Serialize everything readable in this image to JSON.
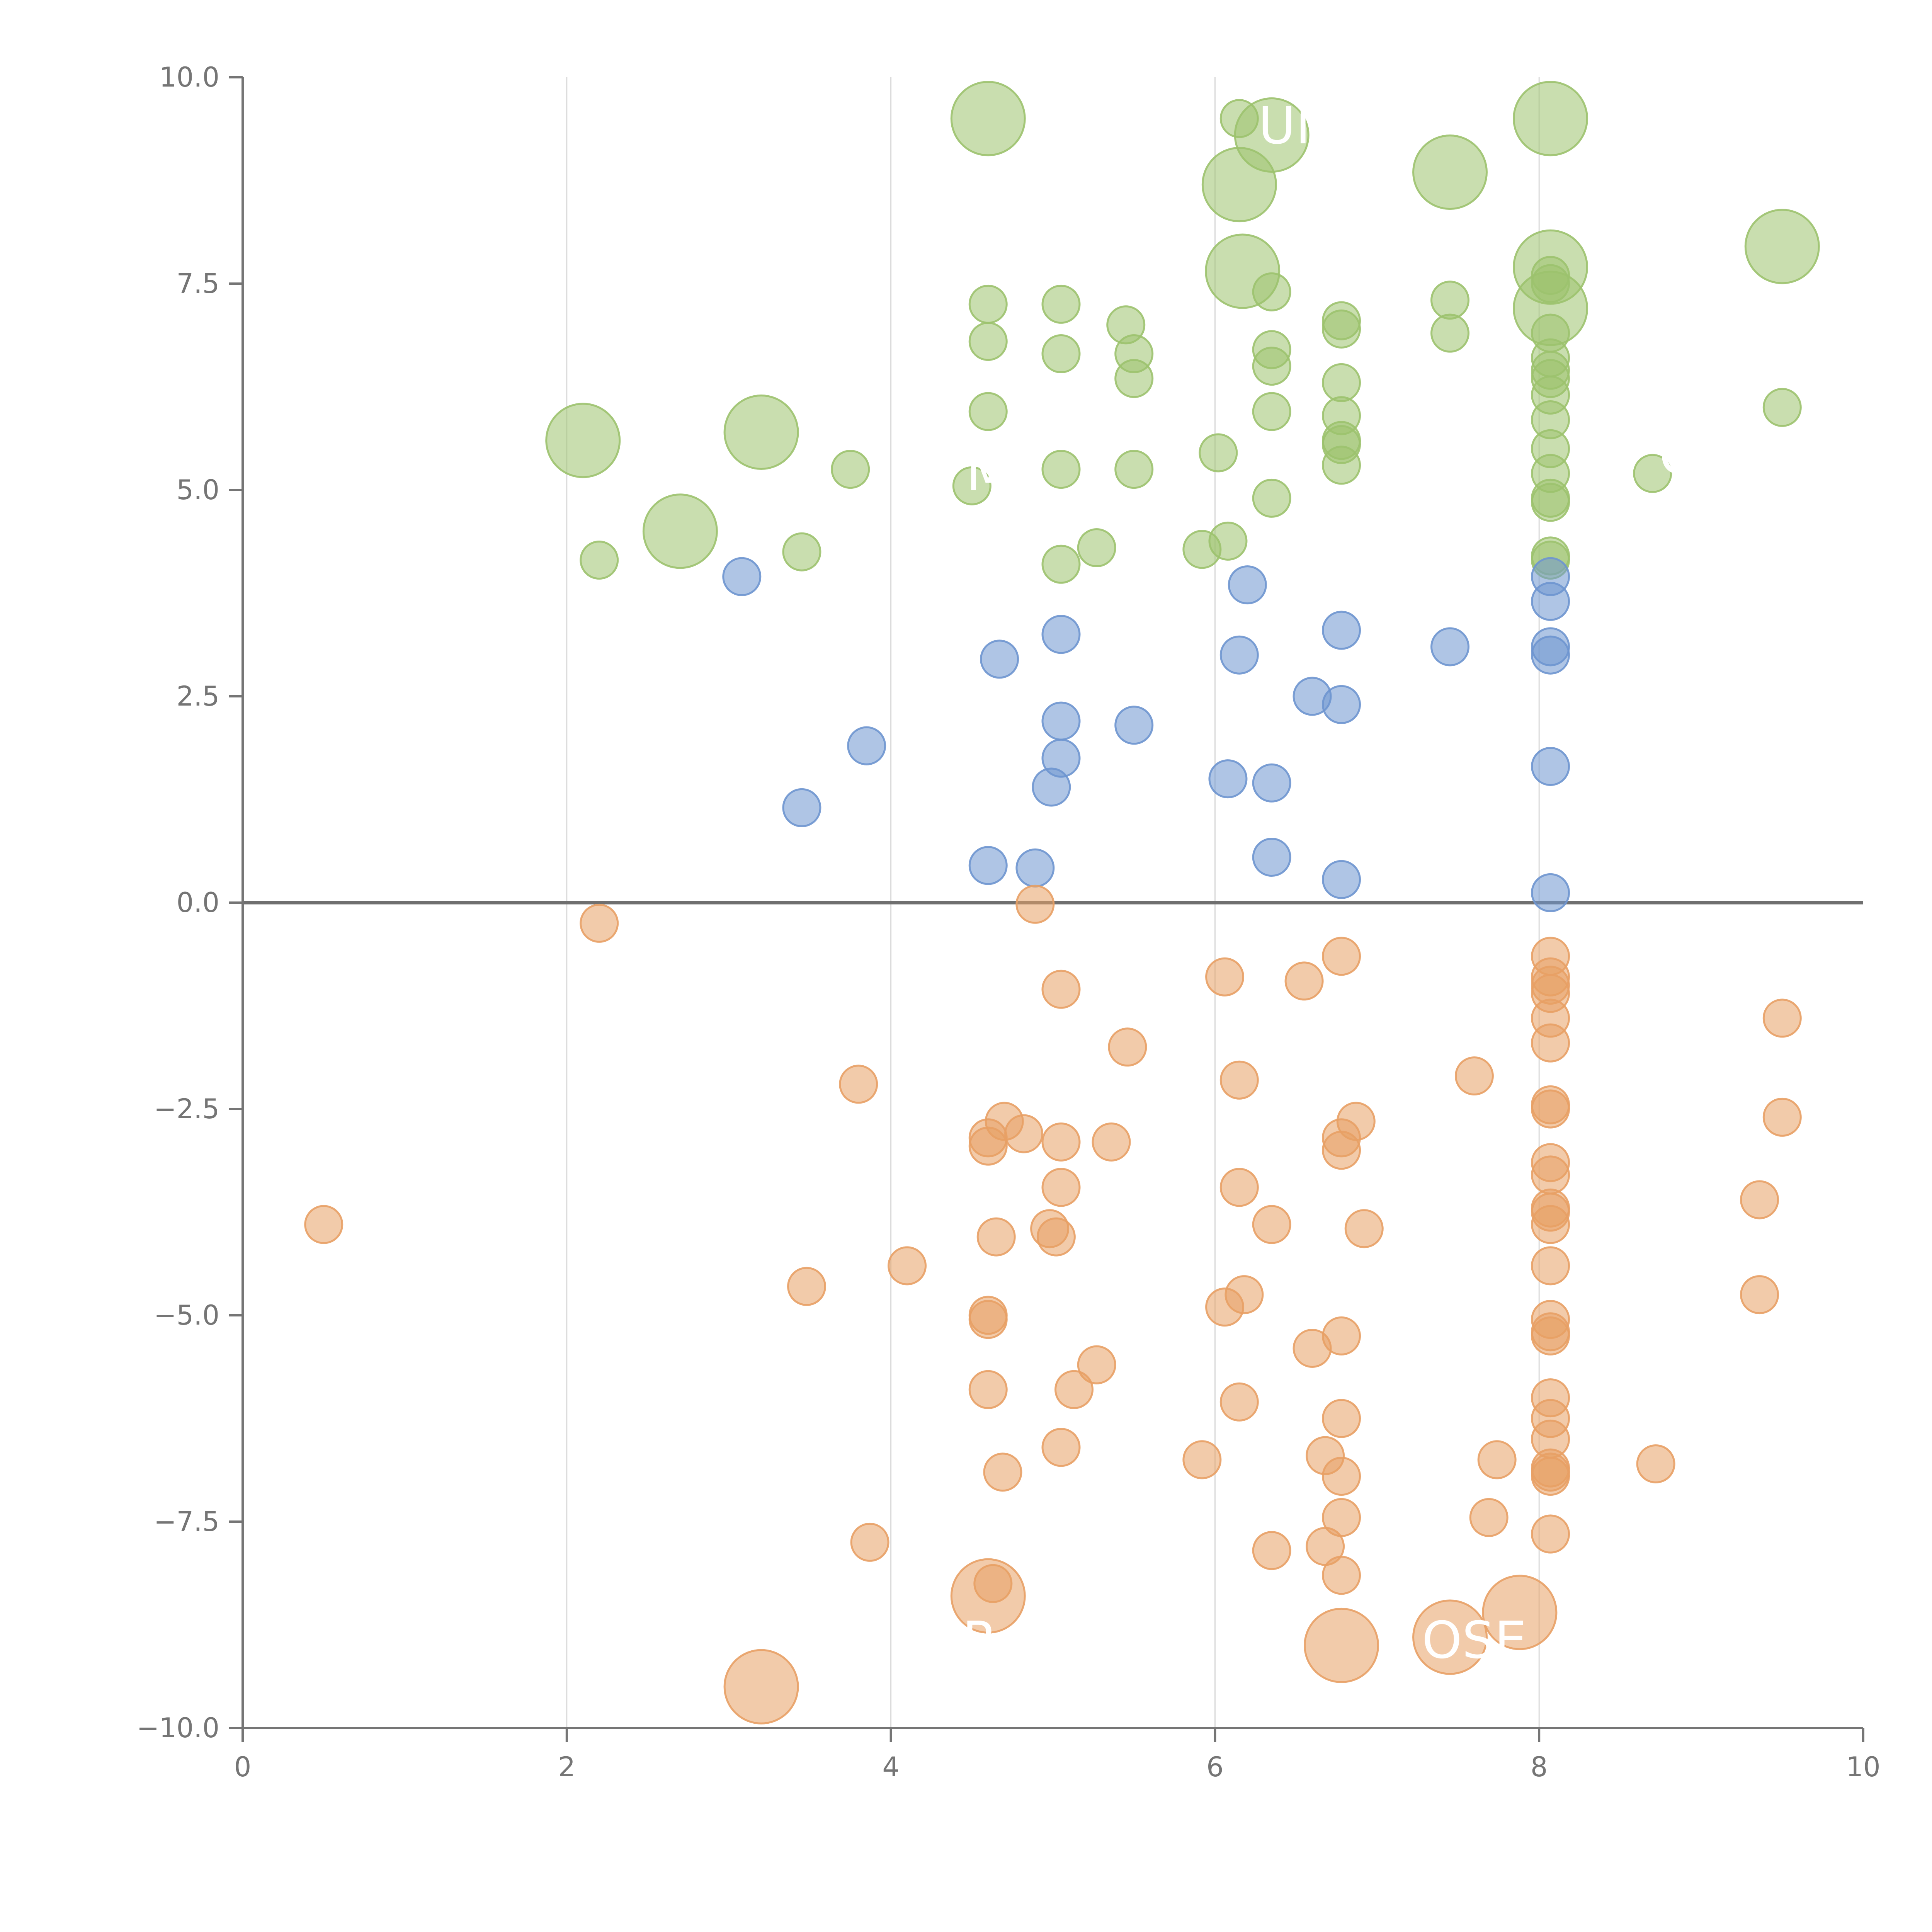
{
  "chart_data": {
    "type": "scatter",
    "title": "",
    "xlabel": "",
    "ylabel": "",
    "xlim": [
      0,
      10
    ],
    "ylim": [
      -10,
      10
    ],
    "x_ticks": [
      0,
      2,
      4,
      6,
      8,
      10
    ],
    "y_ticks": [
      -10,
      -7.5,
      -5,
      -2.5,
      0,
      2.5,
      5,
      7.5,
      10
    ],
    "x_tick_labels": [
      "0",
      "2",
      "4",
      "6",
      "8",
      "10"
    ],
    "y_tick_labels": [
      "−10.0",
      "−7.5",
      "−5.0",
      "−2.5",
      "0.0",
      "2.5",
      "5.0",
      "7.5",
      "10.0"
    ],
    "vertical_gridlines": [
      2,
      4,
      6,
      8
    ],
    "zero_line": 0,
    "colors": {
      "green": "#9cc26e",
      "blue": "#6e95cf",
      "orange": "#e8a065",
      "axis": "#757575",
      "grid": "#d9d9d9"
    },
    "series": [
      {
        "name": "green",
        "points": [
          {
            "x": 4.6,
            "y": 9.5,
            "s": "large"
          },
          {
            "x": 6.15,
            "y": 9.5,
            "s": "small"
          },
          {
            "x": 6.35,
            "y": 9.3,
            "s": "large"
          },
          {
            "x": 6.15,
            "y": 8.7,
            "s": "large"
          },
          {
            "x": 7.45,
            "y": 8.85,
            "s": "large"
          },
          {
            "x": 8.07,
            "y": 9.5,
            "s": "large"
          },
          {
            "x": 9.5,
            "y": 7.95,
            "s": "large"
          },
          {
            "x": 6.17,
            "y": 7.65,
            "s": "large"
          },
          {
            "x": 8.07,
            "y": 7.7,
            "s": "large"
          },
          {
            "x": 8.07,
            "y": 7.2,
            "s": "large"
          },
          {
            "x": 8.07,
            "y": 7.6,
            "s": "small"
          },
          {
            "x": 8.07,
            "y": 7.5,
            "s": "small"
          },
          {
            "x": 8.07,
            "y": 6.9,
            "s": "small"
          },
          {
            "x": 8.07,
            "y": 6.6,
            "s": "small"
          },
          {
            "x": 8.07,
            "y": 6.45,
            "s": "small"
          },
          {
            "x": 8.07,
            "y": 6.35,
            "s": "small"
          },
          {
            "x": 8.07,
            "y": 6.15,
            "s": "small"
          },
          {
            "x": 8.07,
            "y": 5.85,
            "s": "small"
          },
          {
            "x": 8.07,
            "y": 5.5,
            "s": "small"
          },
          {
            "x": 8.07,
            "y": 5.2,
            "s": "small"
          },
          {
            "x": 8.07,
            "y": 4.9,
            "s": "small"
          },
          {
            "x": 8.07,
            "y": 4.85,
            "s": "small"
          },
          {
            "x": 8.07,
            "y": 4.2,
            "s": "small"
          },
          {
            "x": 8.07,
            "y": 4.15,
            "s": "small"
          },
          {
            "x": 4.6,
            "y": 7.25,
            "s": "small"
          },
          {
            "x": 5.05,
            "y": 7.25,
            "s": "small"
          },
          {
            "x": 4.6,
            "y": 6.8,
            "s": "small"
          },
          {
            "x": 5.05,
            "y": 6.65,
            "s": "small"
          },
          {
            "x": 5.45,
            "y": 7.0,
            "s": "small"
          },
          {
            "x": 5.5,
            "y": 6.65,
            "s": "small"
          },
          {
            "x": 5.5,
            "y": 6.35,
            "s": "small"
          },
          {
            "x": 4.6,
            "y": 5.95,
            "s": "small"
          },
          {
            "x": 6.35,
            "y": 7.4,
            "s": "small"
          },
          {
            "x": 6.35,
            "y": 6.7,
            "s": "small"
          },
          {
            "x": 6.35,
            "y": 6.5,
            "s": "small"
          },
          {
            "x": 6.35,
            "y": 5.95,
            "s": "small"
          },
          {
            "x": 6.78,
            "y": 7.05,
            "s": "small"
          },
          {
            "x": 6.78,
            "y": 6.95,
            "s": "small"
          },
          {
            "x": 6.78,
            "y": 6.3,
            "s": "small"
          },
          {
            "x": 6.78,
            "y": 5.9,
            "s": "small"
          },
          {
            "x": 6.78,
            "y": 5.6,
            "s": "small"
          },
          {
            "x": 6.78,
            "y": 5.55,
            "s": "small"
          },
          {
            "x": 6.78,
            "y": 5.3,
            "s": "small"
          },
          {
            "x": 7.45,
            "y": 7.3,
            "s": "small"
          },
          {
            "x": 7.45,
            "y": 6.9,
            "s": "small"
          },
          {
            "x": 9.5,
            "y": 6.0,
            "s": "small"
          },
          {
            "x": 8.7,
            "y": 5.2,
            "s": "small"
          },
          {
            "x": 6.02,
            "y": 5.45,
            "s": "small"
          },
          {
            "x": 6.35,
            "y": 4.9,
            "s": "small"
          },
          {
            "x": 5.05,
            "y": 5.25,
            "s": "small"
          },
          {
            "x": 5.5,
            "y": 5.25,
            "s": "small"
          },
          {
            "x": 4.5,
            "y": 5.05,
            "s": "small"
          },
          {
            "x": 3.75,
            "y": 5.25,
            "s": "small"
          },
          {
            "x": 3.45,
            "y": 4.25,
            "s": "small"
          },
          {
            "x": 5.05,
            "y": 4.1,
            "s": "small"
          },
          {
            "x": 5.27,
            "y": 4.3,
            "s": "small"
          },
          {
            "x": 5.92,
            "y": 4.28,
            "s": "small"
          },
          {
            "x": 6.08,
            "y": 4.38,
            "s": "small"
          },
          {
            "x": 2.2,
            "y": 4.15,
            "s": "small"
          },
          {
            "x": 2.1,
            "y": 5.6,
            "s": "large"
          },
          {
            "x": 3.2,
            "y": 5.7,
            "s": "large"
          },
          {
            "x": 2.7,
            "y": 4.5,
            "s": "large"
          }
        ]
      },
      {
        "name": "blue",
        "points": [
          {
            "x": 3.08,
            "y": 3.95,
            "s": "small"
          },
          {
            "x": 6.2,
            "y": 3.85,
            "s": "small"
          },
          {
            "x": 8.07,
            "y": 3.95,
            "s": "small"
          },
          {
            "x": 8.07,
            "y": 3.65,
            "s": "small"
          },
          {
            "x": 5.05,
            "y": 3.25,
            "s": "small"
          },
          {
            "x": 4.67,
            "y": 2.95,
            "s": "small"
          },
          {
            "x": 6.15,
            "y": 3.0,
            "s": "small"
          },
          {
            "x": 6.78,
            "y": 3.3,
            "s": "small"
          },
          {
            "x": 7.45,
            "y": 3.1,
            "s": "small"
          },
          {
            "x": 8.07,
            "y": 3.1,
            "s": "small"
          },
          {
            "x": 8.07,
            "y": 3.0,
            "s": "small"
          },
          {
            "x": 6.6,
            "y": 2.5,
            "s": "small"
          },
          {
            "x": 6.78,
            "y": 2.4,
            "s": "small"
          },
          {
            "x": 5.05,
            "y": 2.2,
            "s": "small"
          },
          {
            "x": 5.5,
            "y": 2.15,
            "s": "small"
          },
          {
            "x": 3.85,
            "y": 1.9,
            "s": "small"
          },
          {
            "x": 5.05,
            "y": 1.75,
            "s": "small"
          },
          {
            "x": 8.07,
            "y": 1.65,
            "s": "small"
          },
          {
            "x": 6.08,
            "y": 1.5,
            "s": "small"
          },
          {
            "x": 6.35,
            "y": 1.45,
            "s": "small"
          },
          {
            "x": 4.99,
            "y": 1.4,
            "s": "small"
          },
          {
            "x": 3.45,
            "y": 1.15,
            "s": "small"
          },
          {
            "x": 6.35,
            "y": 0.55,
            "s": "small"
          },
          {
            "x": 4.6,
            "y": 0.45,
            "s": "small"
          },
          {
            "x": 4.89,
            "y": 0.42,
            "s": "small"
          },
          {
            "x": 6.78,
            "y": 0.28,
            "s": "small"
          },
          {
            "x": 8.07,
            "y": 0.12,
            "s": "small"
          }
        ]
      },
      {
        "name": "orange",
        "points": [
          {
            "x": 4.89,
            "y": -0.02,
            "s": "small"
          },
          {
            "x": 2.2,
            "y": -0.25,
            "s": "small"
          },
          {
            "x": 6.78,
            "y": -0.65,
            "s": "small"
          },
          {
            "x": 8.07,
            "y": -0.65,
            "s": "small"
          },
          {
            "x": 6.06,
            "y": -0.9,
            "s": "small"
          },
          {
            "x": 6.55,
            "y": -0.95,
            "s": "small"
          },
          {
            "x": 8.07,
            "y": -0.9,
            "s": "small"
          },
          {
            "x": 8.07,
            "y": -1.0,
            "s": "small"
          },
          {
            "x": 8.07,
            "y": -1.1,
            "s": "small"
          },
          {
            "x": 5.05,
            "y": -1.05,
            "s": "small"
          },
          {
            "x": 9.5,
            "y": -1.4,
            "s": "small"
          },
          {
            "x": 8.07,
            "y": -1.4,
            "s": "small"
          },
          {
            "x": 5.46,
            "y": -1.75,
            "s": "small"
          },
          {
            "x": 8.07,
            "y": -1.7,
            "s": "small"
          },
          {
            "x": 7.6,
            "y": -2.1,
            "s": "small"
          },
          {
            "x": 6.15,
            "y": -2.15,
            "s": "small"
          },
          {
            "x": 3.8,
            "y": -2.2,
            "s": "small"
          },
          {
            "x": 8.07,
            "y": -2.45,
            "s": "small"
          },
          {
            "x": 8.07,
            "y": -2.5,
            "s": "small"
          },
          {
            "x": 9.5,
            "y": -2.6,
            "s": "small"
          },
          {
            "x": 4.7,
            "y": -2.65,
            "s": "small"
          },
          {
            "x": 6.87,
            "y": -2.65,
            "s": "small"
          },
          {
            "x": 4.6,
            "y": -2.85,
            "s": "small"
          },
          {
            "x": 4.6,
            "y": -2.95,
            "s": "small"
          },
          {
            "x": 4.82,
            "y": -2.8,
            "s": "small"
          },
          {
            "x": 5.05,
            "y": -2.9,
            "s": "small"
          },
          {
            "x": 5.36,
            "y": -2.9,
            "s": "small"
          },
          {
            "x": 6.78,
            "y": -2.85,
            "s": "small"
          },
          {
            "x": 6.78,
            "y": -3.0,
            "s": "small"
          },
          {
            "x": 8.07,
            "y": -3.15,
            "s": "small"
          },
          {
            "x": 8.07,
            "y": -3.3,
            "s": "small"
          },
          {
            "x": 5.05,
            "y": -3.45,
            "s": "small"
          },
          {
            "x": 6.15,
            "y": -3.45,
            "s": "small"
          },
          {
            "x": 9.36,
            "y": -3.6,
            "s": "small"
          },
          {
            "x": 8.07,
            "y": -3.7,
            "s": "small"
          },
          {
            "x": 8.07,
            "y": -3.75,
            "s": "small"
          },
          {
            "x": 8.07,
            "y": -3.9,
            "s": "small"
          },
          {
            "x": 0.5,
            "y": -3.9,
            "s": "small"
          },
          {
            "x": 6.35,
            "y": -3.9,
            "s": "small"
          },
          {
            "x": 4.98,
            "y": -3.95,
            "s": "small"
          },
          {
            "x": 6.92,
            "y": -3.95,
            "s": "small"
          },
          {
            "x": 4.65,
            "y": -4.05,
            "s": "small"
          },
          {
            "x": 5.02,
            "y": -4.05,
            "s": "small"
          },
          {
            "x": 4.1,
            "y": -4.4,
            "s": "small"
          },
          {
            "x": 8.07,
            "y": -4.4,
            "s": "small"
          },
          {
            "x": 3.48,
            "y": -4.65,
            "s": "small"
          },
          {
            "x": 6.18,
            "y": -4.75,
            "s": "small"
          },
          {
            "x": 9.36,
            "y": -4.75,
            "s": "small"
          },
          {
            "x": 6.06,
            "y": -4.9,
            "s": "small"
          },
          {
            "x": 4.6,
            "y": -5.0,
            "s": "small"
          },
          {
            "x": 4.6,
            "y": -5.05,
            "s": "small"
          },
          {
            "x": 8.07,
            "y": -5.05,
            "s": "small"
          },
          {
            "x": 8.07,
            "y": -5.2,
            "s": "small"
          },
          {
            "x": 8.07,
            "y": -5.25,
            "s": "small"
          },
          {
            "x": 6.78,
            "y": -5.25,
            "s": "small"
          },
          {
            "x": 6.6,
            "y": -5.4,
            "s": "small"
          },
          {
            "x": 5.27,
            "y": -5.6,
            "s": "small"
          },
          {
            "x": 5.13,
            "y": -5.9,
            "s": "small"
          },
          {
            "x": 4.6,
            "y": -5.9,
            "s": "small"
          },
          {
            "x": 8.07,
            "y": -6.0,
            "s": "small"
          },
          {
            "x": 6.15,
            "y": -6.05,
            "s": "small"
          },
          {
            "x": 8.07,
            "y": -6.25,
            "s": "small"
          },
          {
            "x": 6.78,
            "y": -6.25,
            "s": "small"
          },
          {
            "x": 8.07,
            "y": -6.5,
            "s": "small"
          },
          {
            "x": 5.05,
            "y": -6.6,
            "s": "small"
          },
          {
            "x": 6.68,
            "y": -6.7,
            "s": "small"
          },
          {
            "x": 5.92,
            "y": -6.75,
            "s": "small"
          },
          {
            "x": 7.74,
            "y": -6.75,
            "s": "small"
          },
          {
            "x": 8.07,
            "y": -6.85,
            "s": "small"
          },
          {
            "x": 8.07,
            "y": -6.9,
            "s": "small"
          },
          {
            "x": 8.72,
            "y": -6.8,
            "s": "small"
          },
          {
            "x": 8.07,
            "y": -6.95,
            "s": "small"
          },
          {
            "x": 6.78,
            "y": -6.95,
            "s": "small"
          },
          {
            "x": 4.69,
            "y": -6.9,
            "s": "small"
          },
          {
            "x": 6.78,
            "y": -7.45,
            "s": "small"
          },
          {
            "x": 7.69,
            "y": -7.45,
            "s": "small"
          },
          {
            "x": 8.07,
            "y": -7.65,
            "s": "small"
          },
          {
            "x": 3.87,
            "y": -7.75,
            "s": "small"
          },
          {
            "x": 6.68,
            "y": -7.8,
            "s": "small"
          },
          {
            "x": 6.35,
            "y": -7.85,
            "s": "small"
          },
          {
            "x": 6.78,
            "y": -8.15,
            "s": "small"
          },
          {
            "x": 4.63,
            "y": -8.25,
            "s": "small"
          },
          {
            "x": 4.6,
            "y": -8.4,
            "s": "large"
          },
          {
            "x": 7.88,
            "y": -8.6,
            "s": "large"
          },
          {
            "x": 7.45,
            "y": -8.9,
            "s": "large"
          },
          {
            "x": 6.78,
            "y": -9.0,
            "s": "large"
          },
          {
            "x": 3.2,
            "y": -9.5,
            "s": "large"
          }
        ]
      }
    ],
    "annotations": [
      {
        "text": "UN",
        "x": 6.5,
        "y": 9.2
      },
      {
        "text": "M",
        "x": 4.6,
        "y": 5.0
      },
      {
        "text": "C",
        "x": 8.85,
        "y": 5.2
      },
      {
        "text": "R",
        "x": 4.55,
        "y": -9.15
      },
      {
        "text": "OSE",
        "x": 7.6,
        "y": -9.15
      }
    ]
  }
}
